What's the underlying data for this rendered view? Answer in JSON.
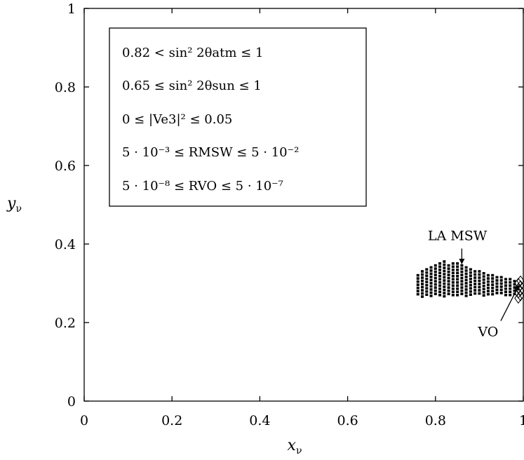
{
  "chart_data": {
    "type": "scatter",
    "xlim": [
      0,
      1
    ],
    "ylim": [
      0,
      1
    ],
    "grid": false,
    "x_ticks": [
      {
        "value": 0,
        "label": "0"
      },
      {
        "value": 0.2,
        "label": "0.2"
      },
      {
        "value": 0.4,
        "label": "0.4"
      },
      {
        "value": 0.6,
        "label": "0.6"
      },
      {
        "value": 0.8,
        "label": "0.8"
      },
      {
        "value": 1,
        "label": "1"
      }
    ],
    "y_ticks": [
      {
        "value": 0,
        "label": "0"
      },
      {
        "value": 0.2,
        "label": "0.2"
      },
      {
        "value": 0.4,
        "label": "0.4"
      },
      {
        "value": 0.6,
        "label": "0.6"
      },
      {
        "value": 0.8,
        "label": "0.8"
      },
      {
        "value": 1,
        "label": "1"
      }
    ],
    "xlabel": {
      "main": "x",
      "sub": "ν"
    },
    "ylabel": {
      "main": "y",
      "sub": "ν"
    },
    "legend_placement": "top-left",
    "legend": [
      "0.82 < sin² 2θatm ≤ 1",
      "0.65 ≤ sin² 2θsun ≤ 1",
      "0 ≤ |Ve3|² ≤ 0.05",
      "5 · 10⁻³ ≤ RMSW ≤ 5 · 10⁻²",
      "5 · 10⁻⁸ ≤ RVO ≤ 5 · 10⁻⁷"
    ],
    "series": [
      {
        "label": "LA MSW",
        "marker": "small-filled-square",
        "points": [
          [
            0.76,
            0.32
          ],
          [
            0.77,
            0.33
          ],
          [
            0.78,
            0.335
          ],
          [
            0.79,
            0.34
          ],
          [
            0.8,
            0.345
          ],
          [
            0.81,
            0.35
          ],
          [
            0.82,
            0.355
          ],
          [
            0.83,
            0.345
          ],
          [
            0.84,
            0.35
          ],
          [
            0.85,
            0.35
          ],
          [
            0.86,
            0.345
          ],
          [
            0.87,
            0.34
          ],
          [
            0.88,
            0.335
          ],
          [
            0.89,
            0.33
          ],
          [
            0.9,
            0.33
          ],
          [
            0.91,
            0.325
          ],
          [
            0.92,
            0.32
          ],
          [
            0.93,
            0.32
          ],
          [
            0.94,
            0.315
          ],
          [
            0.95,
            0.315
          ],
          [
            0.96,
            0.31
          ],
          [
            0.97,
            0.31
          ],
          [
            0.98,
            0.305
          ]
        ]
      },
      {
        "label": "VO",
        "marker": "open-diamond",
        "points": [
          [
            0.995,
            0.3
          ],
          [
            0.995,
            0.287
          ],
          [
            0.995,
            0.275
          ],
          [
            0.995,
            0.262
          ],
          [
            1.0,
            0.306
          ],
          [
            1.0,
            0.294
          ],
          [
            1.0,
            0.281
          ],
          [
            1.0,
            0.268
          ]
        ]
      }
    ],
    "annotations": [
      {
        "text": "LA MSW",
        "arrow_to": [
          0.86,
          0.35
        ],
        "label_at": [
          0.85,
          0.41
        ]
      },
      {
        "text": "VO",
        "arrow_to": [
          0.99,
          0.295
        ],
        "label_at": [
          0.92,
          0.165
        ]
      }
    ]
  }
}
